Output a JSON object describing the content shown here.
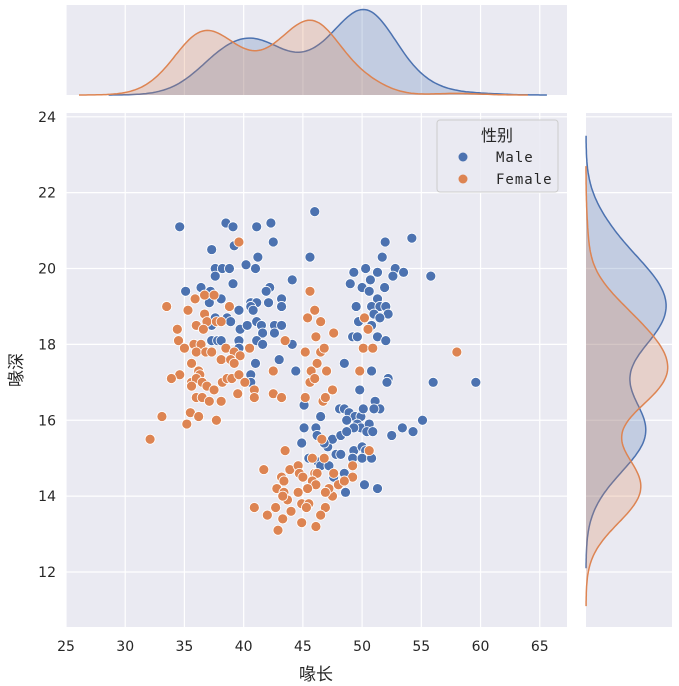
{
  "chart_data": {
    "type": "scatter",
    "subtype": "jointplot with kde marginals",
    "xlabel": "喙长",
    "ylabel": "喙深",
    "xlim": [
      25,
      67.3
    ],
    "ylim": [
      10.55,
      24.1
    ],
    "xticks": [
      25,
      30,
      35,
      40,
      45,
      50,
      55,
      60,
      65
    ],
    "yticks": [
      12,
      14,
      16,
      18,
      20,
      22,
      24
    ],
    "grid": true,
    "legend": {
      "title": "性别",
      "placement": "top-right",
      "entries": [
        "Male",
        "Female"
      ]
    },
    "colors": {
      "background": "#eaeaf2",
      "grid": "#ffffff",
      "Male": "#4c72b0",
      "Female": "#dd8452"
    },
    "series": [
      {
        "name": "Male",
        "points": [
          [
            34.6,
            21.1
          ],
          [
            38.5,
            21.2
          ],
          [
            39.1,
            21.1
          ],
          [
            41.1,
            21.1
          ],
          [
            42.3,
            21.2
          ],
          [
            46,
            21.5
          ],
          [
            37.3,
            20.5
          ],
          [
            39.2,
            20.6
          ],
          [
            42.5,
            20.7
          ],
          [
            40.2,
            20.1
          ],
          [
            41.2,
            20.3
          ],
          [
            45.6,
            20.3
          ],
          [
            37.6,
            20
          ],
          [
            38.2,
            20
          ],
          [
            38.8,
            20
          ],
          [
            41,
            20
          ],
          [
            37.6,
            19.8
          ],
          [
            44.1,
            19.7
          ],
          [
            39.1,
            19.6
          ],
          [
            35.1,
            19.4
          ],
          [
            36.4,
            19.5
          ],
          [
            37.2,
            19.4
          ],
          [
            42.2,
            19.5
          ],
          [
            41.9,
            19.4
          ],
          [
            38.1,
            19.2
          ],
          [
            43.2,
            19.2
          ],
          [
            37.1,
            19.1
          ],
          [
            40.6,
            19.1
          ],
          [
            41.1,
            19.1
          ],
          [
            42.1,
            19.1
          ],
          [
            43.2,
            19
          ],
          [
            39.6,
            18.9
          ],
          [
            40.6,
            19
          ],
          [
            40.8,
            18.9
          ],
          [
            37.6,
            18.7
          ],
          [
            38.6,
            18.7
          ],
          [
            38.9,
            18.6
          ],
          [
            39.7,
            18.4
          ],
          [
            40.3,
            18.5
          ],
          [
            41.1,
            18.6
          ],
          [
            41.5,
            18.5
          ],
          [
            41.6,
            18.3
          ],
          [
            37.3,
            18.5
          ],
          [
            42.6,
            18.5
          ],
          [
            43.2,
            18.5
          ],
          [
            42.6,
            18.3
          ],
          [
            41.1,
            18.1
          ],
          [
            37.3,
            18.1
          ],
          [
            37.8,
            18.1
          ],
          [
            38.1,
            18.1
          ],
          [
            39.6,
            18.1
          ],
          [
            41.6,
            18
          ],
          [
            44.1,
            18
          ],
          [
            39.6,
            17.9
          ],
          [
            43,
            17.6
          ],
          [
            44.4,
            17.3
          ],
          [
            41,
            17.5
          ],
          [
            40.6,
            17.2
          ],
          [
            40.6,
            17
          ],
          [
            45.1,
            16.4
          ],
          [
            46.5,
            16.1
          ],
          [
            45.1,
            15.8
          ],
          [
            46.1,
            15.8
          ],
          [
            47.1,
            15.3
          ],
          [
            46.2,
            15.6
          ],
          [
            44.9,
            15.4
          ],
          [
            45.5,
            15
          ],
          [
            46.3,
            14.9
          ],
          [
            47.6,
            14.5
          ],
          [
            48.1,
            16.3
          ],
          [
            47.5,
            15.5
          ],
          [
            46.8,
            15.4
          ],
          [
            47.8,
            15.1
          ],
          [
            46.5,
            14.8
          ],
          [
            47.2,
            14.8
          ],
          [
            51.95,
            20.7
          ],
          [
            54.2,
            20.8
          ],
          [
            51.7,
            20.3
          ],
          [
            49.3,
            19.9
          ],
          [
            50.3,
            20
          ],
          [
            51.3,
            19.9
          ],
          [
            52.8,
            20
          ],
          [
            53.5,
            19.9
          ],
          [
            52.6,
            19.8
          ],
          [
            55.8,
            19.8
          ],
          [
            49,
            19.6
          ],
          [
            50,
            19.5
          ],
          [
            50.7,
            19.7
          ],
          [
            50.6,
            19.4
          ],
          [
            51.9,
            19.5
          ],
          [
            51.3,
            19.2
          ],
          [
            49.5,
            19
          ],
          [
            50.8,
            19
          ],
          [
            51.5,
            19
          ],
          [
            52,
            19
          ],
          [
            51,
            18.8
          ],
          [
            52.2,
            18.8
          ],
          [
            51.5,
            18.7
          ],
          [
            49.7,
            18.6
          ],
          [
            50.8,
            18.5
          ],
          [
            49.2,
            18.2
          ],
          [
            49.6,
            18.2
          ],
          [
            51.3,
            18.2
          ],
          [
            52,
            18.1
          ],
          [
            48.5,
            17.5
          ],
          [
            50.8,
            17.3
          ],
          [
            52.2,
            17.1
          ],
          [
            52.1,
            17
          ],
          [
            56,
            17
          ],
          [
            59.6,
            17
          ],
          [
            49.8,
            16.8
          ],
          [
            51.1,
            16.5
          ],
          [
            51.5,
            16.3
          ],
          [
            51,
            16.3
          ],
          [
            48.5,
            16.3
          ],
          [
            48.9,
            16.2
          ],
          [
            49.4,
            16.1
          ],
          [
            49.9,
            16.1
          ],
          [
            50.1,
            16.3
          ],
          [
            48.7,
            16
          ],
          [
            49.6,
            15.9
          ],
          [
            49.9,
            15.8
          ],
          [
            50.6,
            15.9
          ],
          [
            49.3,
            15.8
          ],
          [
            50.4,
            15.7
          ],
          [
            50.9,
            15.7
          ],
          [
            48.2,
            15.6
          ],
          [
            48.7,
            15.7
          ],
          [
            52.5,
            15.6
          ],
          [
            53.4,
            15.8
          ],
          [
            54.3,
            15.7
          ],
          [
            55.1,
            16
          ],
          [
            49.3,
            15.2
          ],
          [
            48.2,
            15.1
          ],
          [
            50,
            15.3
          ],
          [
            50.3,
            15.2
          ],
          [
            49.2,
            15
          ],
          [
            50,
            15
          ],
          [
            50.8,
            15
          ],
          [
            48.5,
            14.6
          ],
          [
            48.6,
            14.1
          ],
          [
            50.2,
            14.3
          ],
          [
            51.3,
            14.2
          ]
        ]
      },
      {
        "name": "Female",
        "points": [
          [
            39.6,
            20.7
          ],
          [
            33.5,
            19
          ],
          [
            35.9,
            19.2
          ],
          [
            36.7,
            19.3
          ],
          [
            35.3,
            18.9
          ],
          [
            34.4,
            18.4
          ],
          [
            36,
            18.5
          ],
          [
            36.7,
            18.8
          ],
          [
            36.9,
            18.6
          ],
          [
            36.6,
            18.4
          ],
          [
            37.7,
            18.6
          ],
          [
            38.1,
            18.6
          ],
          [
            38.8,
            19
          ],
          [
            37.5,
            19.3
          ],
          [
            34.5,
            18.1
          ],
          [
            35,
            17.9
          ],
          [
            35.8,
            18
          ],
          [
            36.4,
            18
          ],
          [
            36,
            17.8
          ],
          [
            36.8,
            17.8
          ],
          [
            37.3,
            17.8
          ],
          [
            38.5,
            17.9
          ],
          [
            39.2,
            17.8
          ],
          [
            39.7,
            17.7
          ],
          [
            40.5,
            17.9
          ],
          [
            38.1,
            17.6
          ],
          [
            38.9,
            17.6
          ],
          [
            39.2,
            17.5
          ],
          [
            35.6,
            17.5
          ],
          [
            36.2,
            17.3
          ],
          [
            36.3,
            17.2
          ],
          [
            34.6,
            17.2
          ],
          [
            33.9,
            17.1
          ],
          [
            35.6,
            17
          ],
          [
            36,
            17.1
          ],
          [
            35.6,
            16.9
          ],
          [
            36.5,
            17
          ],
          [
            36.9,
            16.9
          ],
          [
            37.5,
            16.8
          ],
          [
            38.2,
            17
          ],
          [
            38.6,
            17.1
          ],
          [
            39,
            17.1
          ],
          [
            39.6,
            17.2
          ],
          [
            40.1,
            17
          ],
          [
            40.9,
            16.8
          ],
          [
            36,
            16.6
          ],
          [
            36.5,
            16.6
          ],
          [
            37.1,
            16.5
          ],
          [
            38.1,
            16.5
          ],
          [
            39.5,
            16.7
          ],
          [
            40.9,
            16.6
          ],
          [
            42.5,
            17.3
          ],
          [
            42.5,
            16.7
          ],
          [
            43.2,
            16.6
          ],
          [
            43.5,
            18.1
          ],
          [
            35.5,
            16.2
          ],
          [
            36.2,
            16.1
          ],
          [
            35.2,
            15.9
          ],
          [
            37.7,
            16
          ],
          [
            33.1,
            16.1
          ],
          [
            32.1,
            15.5
          ],
          [
            45.6,
            19.4
          ],
          [
            46,
            18.9
          ],
          [
            46.5,
            18.6
          ],
          [
            45.4,
            18.7
          ],
          [
            46.1,
            18.2
          ],
          [
            47.6,
            18.3
          ],
          [
            45.2,
            17.8
          ],
          [
            46.5,
            17.8
          ],
          [
            46.8,
            17.9
          ],
          [
            46.2,
            17.5
          ],
          [
            45.7,
            17.3
          ],
          [
            47,
            17.3
          ],
          [
            45.6,
            17
          ],
          [
            46,
            17.1
          ],
          [
            47.5,
            16.8
          ],
          [
            46.7,
            16.5
          ],
          [
            46.9,
            16.6
          ],
          [
            45.2,
            16.6
          ],
          [
            43.5,
            15.2
          ],
          [
            41.7,
            14.7
          ],
          [
            43.9,
            14.7
          ],
          [
            44.6,
            14.8
          ],
          [
            44.7,
            14.6
          ],
          [
            45,
            14.5
          ],
          [
            45.8,
            15
          ],
          [
            46.6,
            15.5
          ],
          [
            46.8,
            15
          ],
          [
            46,
            14.6
          ],
          [
            46.2,
            14.6
          ],
          [
            45.8,
            14.4
          ],
          [
            46.1,
            14.3
          ],
          [
            43.2,
            14.5
          ],
          [
            43.4,
            14.4
          ],
          [
            42.8,
            14.2
          ],
          [
            43.4,
            14.1
          ],
          [
            43.7,
            13.9
          ],
          [
            43.3,
            14
          ],
          [
            47.5,
            14
          ],
          [
            40.9,
            13.7
          ],
          [
            42,
            13.5
          ],
          [
            42.7,
            13.7
          ],
          [
            44,
            13.6
          ],
          [
            44.9,
            13.8
          ],
          [
            45.5,
            13.8
          ],
          [
            45.3,
            13.7
          ],
          [
            46.9,
            13.7
          ],
          [
            42.9,
            13.1
          ],
          [
            46.1,
            13.2
          ],
          [
            43.3,
            13.4
          ],
          [
            44.9,
            13.3
          ],
          [
            46.5,
            13.5
          ],
          [
            48,
            14.3
          ],
          [
            47.2,
            14.2
          ],
          [
            47.6,
            14.6
          ],
          [
            46.9,
            14.1
          ],
          [
            45.4,
            14.2
          ],
          [
            44.6,
            14.1
          ],
          [
            50.2,
            18.7
          ],
          [
            50.5,
            18.4
          ],
          [
            50.1,
            17.9
          ],
          [
            50.9,
            17.9
          ],
          [
            49.8,
            17.3
          ],
          [
            58,
            17.8
          ],
          [
            50.6,
            15.2
          ],
          [
            49.2,
            14.8
          ],
          [
            49.2,
            14.5
          ],
          [
            48.5,
            14.4
          ]
        ]
      }
    ]
  }
}
